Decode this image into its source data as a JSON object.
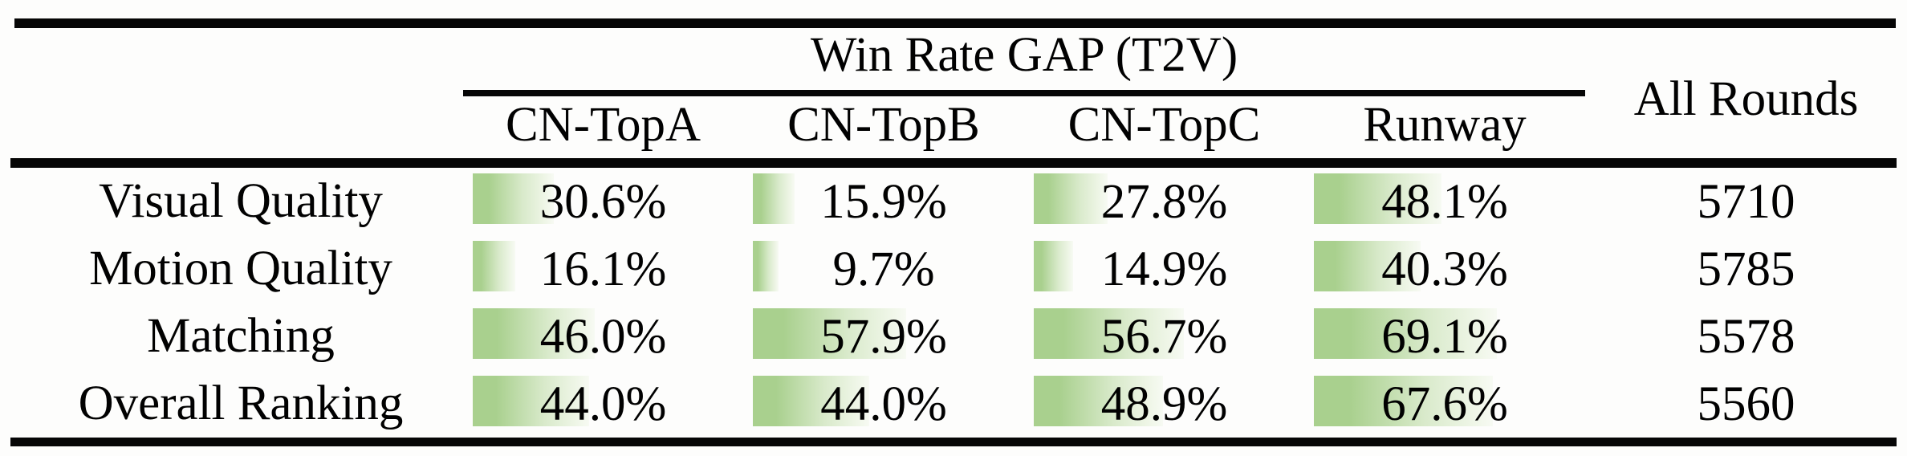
{
  "table": {
    "group_header": "Win Rate GAP (T2V)",
    "all_rounds_header": "All Rounds",
    "columns": [
      "CN-TopA",
      "CN-TopB",
      "CN-TopC",
      "Runway"
    ],
    "rows": [
      {
        "label": "Visual Quality",
        "cells": [
          {
            "text": "30.6%",
            "value": 30.6
          },
          {
            "text": "15.9%",
            "value": 15.9
          },
          {
            "text": "27.8%",
            "value": 27.8
          },
          {
            "text": "48.1%",
            "value": 48.1
          }
        ],
        "all_rounds": "5710"
      },
      {
        "label": "Motion Quality",
        "cells": [
          {
            "text": "16.1%",
            "value": 16.1
          },
          {
            "text": "9.7%",
            "value": 9.7
          },
          {
            "text": "14.9%",
            "value": 14.9
          },
          {
            "text": "40.3%",
            "value": 40.3
          }
        ],
        "all_rounds": "5785"
      },
      {
        "label": "Matching",
        "cells": [
          {
            "text": "46.0%",
            "value": 46.0
          },
          {
            "text": "57.9%",
            "value": 57.9
          },
          {
            "text": "56.7%",
            "value": 56.7
          },
          {
            "text": "69.1%",
            "value": 69.1
          }
        ],
        "all_rounds": "5578"
      },
      {
        "label": "Overall Ranking",
        "cells": [
          {
            "text": "44.0%",
            "value": 44.0
          },
          {
            "text": "44.0%",
            "value": 44.0
          },
          {
            "text": "48.9%",
            "value": 48.9
          },
          {
            "text": "67.6%",
            "value": 67.6
          }
        ],
        "all_rounds": "5560"
      }
    ]
  },
  "style": {
    "bar_color": "#a9d08e",
    "rule_color": "#060606"
  },
  "chart_data": {
    "type": "table",
    "title": "Win Rate GAP (T2V)",
    "columns": [
      "CN-TopA",
      "CN-TopB",
      "CN-TopC",
      "Runway",
      "All Rounds"
    ],
    "row_labels": [
      "Visual Quality",
      "Motion Quality",
      "Matching",
      "Overall Ranking"
    ],
    "series": [
      {
        "name": "CN-TopA",
        "values": [
          30.6,
          16.1,
          46.0,
          44.0
        ]
      },
      {
        "name": "CN-TopB",
        "values": [
          15.9,
          9.7,
          57.9,
          44.0
        ]
      },
      {
        "name": "CN-TopC",
        "values": [
          27.8,
          14.9,
          56.7,
          48.9
        ]
      },
      {
        "name": "Runway",
        "values": [
          48.1,
          40.3,
          69.1,
          67.6
        ]
      }
    ],
    "all_rounds": [
      5710,
      5785,
      5578,
      5560
    ],
    "value_unit": "%",
    "bar_style": "in-cell gradient data bars, green fading to white, width proportional to value"
  }
}
